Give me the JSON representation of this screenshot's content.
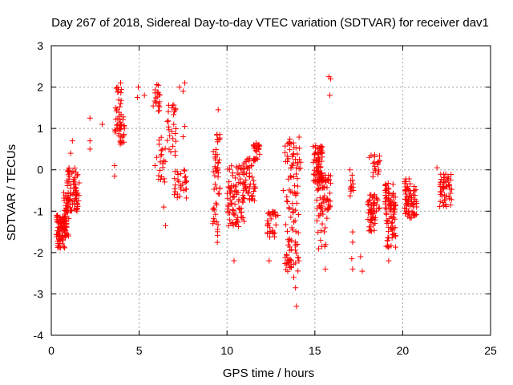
{
  "chart_data": {
    "type": "scatter",
    "title": "Day 267 of 2018, Sidereal Day-to-day VTEC variation (SDTVAR) for receiver dav1",
    "xlabel": "GPS time / hours",
    "ylabel": "SDTVAR / TECUs",
    "xlim": [
      0,
      25
    ],
    "ylim": [
      -4,
      3
    ],
    "xticks": [
      0,
      5,
      10,
      15,
      20,
      25
    ],
    "yticks": [
      -4,
      -3,
      -2,
      -1,
      0,
      1,
      2,
      3
    ],
    "xtick_labels": [
      "0",
      "5",
      "10",
      "15",
      "20",
      "25"
    ],
    "ytick_labels": [
      "-4",
      "-3",
      "-2",
      "-1",
      "0",
      "1",
      "2",
      "3"
    ],
    "grid": true,
    "marker": "+",
    "colors": {
      "points": "#ff0000",
      "grid": "#a0a0a0",
      "axis": "#000000"
    },
    "series": [
      {
        "name": "SDTVAR",
        "clusters": [
          {
            "x": [
              0.3,
              0.8
            ],
            "y": [
              -1.9,
              -1.1
            ],
            "n": 80
          },
          {
            "x": [
              0.7,
              1.0
            ],
            "y": [
              -1.6,
              -0.5
            ],
            "n": 45
          },
          {
            "x": [
              0.9,
              1.6
            ],
            "y": [
              -1.0,
              0.1
            ],
            "n": 70
          },
          {
            "x": [
              3.6,
              4.0
            ],
            "y": [
              0.9,
              2.3
            ],
            "n": 30
          },
          {
            "x": [
              3.8,
              4.2
            ],
            "y": [
              0.6,
              1.3
            ],
            "n": 25
          },
          {
            "x": [
              5.8,
              6.2
            ],
            "y": [
              1.4,
              2.2
            ],
            "n": 20
          },
          {
            "x": [
              6.1,
              6.5
            ],
            "y": [
              -0.3,
              0.8
            ],
            "n": 20
          },
          {
            "x": [
              6.6,
              7.1
            ],
            "y": [
              0.3,
              1.6
            ],
            "n": 25
          },
          {
            "x": [
              7.0,
              7.7
            ],
            "y": [
              -0.7,
              0.0
            ],
            "n": 30
          },
          {
            "x": [
              9.2,
              9.6
            ],
            "y": [
              -0.6,
              0.9
            ],
            "n": 35
          },
          {
            "x": [
              9.2,
              9.5
            ],
            "y": [
              -1.8,
              -0.8
            ],
            "n": 15
          },
          {
            "x": [
              10.0,
              11.0
            ],
            "y": [
              -1.4,
              0.1
            ],
            "n": 90
          },
          {
            "x": [
              10.9,
              11.6
            ],
            "y": [
              -0.8,
              0.3
            ],
            "n": 50
          },
          {
            "x": [
              11.5,
              11.9
            ],
            "y": [
              0.2,
              0.7
            ],
            "n": 25
          },
          {
            "x": [
              12.3,
              12.8
            ],
            "y": [
              -1.7,
              -1.0
            ],
            "n": 30
          },
          {
            "x": [
              13.3,
              14.1
            ],
            "y": [
              -2.5,
              -1.3
            ],
            "n": 45
          },
          {
            "x": [
              13.4,
              14.1
            ],
            "y": [
              -1.3,
              -0.1
            ],
            "n": 30
          },
          {
            "x": [
              13.3,
              14.2
            ],
            "y": [
              0.0,
              0.8
            ],
            "n": 35
          },
          {
            "x": [
              14.9,
              15.5
            ],
            "y": [
              -0.3,
              0.6
            ],
            "n": 70
          },
          {
            "x": [
              15.1,
              15.9
            ],
            "y": [
              -1.0,
              -0.1
            ],
            "n": 60
          },
          {
            "x": [
              15.1,
              15.7
            ],
            "y": [
              -2.0,
              -1.0
            ],
            "n": 15
          },
          {
            "x": [
              17.0,
              17.2
            ],
            "y": [
              -0.7,
              -0.1
            ],
            "n": 12
          },
          {
            "x": [
              18.0,
              18.5
            ],
            "y": [
              -1.5,
              -0.6
            ],
            "n": 50
          },
          {
            "x": [
              18.3,
              18.7
            ],
            "y": [
              -1.0,
              0.4
            ],
            "n": 25
          },
          {
            "x": [
              19.0,
              19.6
            ],
            "y": [
              -1.9,
              -0.6
            ],
            "n": 70
          },
          {
            "x": [
              19.0,
              19.5
            ],
            "y": [
              -0.7,
              -0.3
            ],
            "n": 20
          },
          {
            "x": [
              20.1,
              20.8
            ],
            "y": [
              -1.2,
              -0.2
            ],
            "n": 70
          },
          {
            "x": [
              22.1,
              22.8
            ],
            "y": [
              -0.9,
              -0.1
            ],
            "n": 50
          }
        ],
        "outliers": [
          [
            1.2,
            0.7
          ],
          [
            1.1,
            0.4
          ],
          [
            2.2,
            0.7
          ],
          [
            2.2,
            0.5
          ],
          [
            2.2,
            1.25
          ],
          [
            2.9,
            1.1
          ],
          [
            3.6,
            0.1
          ],
          [
            3.6,
            -0.15
          ],
          [
            4.9,
            1.75
          ],
          [
            4.95,
            2.0
          ],
          [
            5.3,
            1.8
          ],
          [
            5.9,
            0.1
          ],
          [
            6.0,
            0.3
          ],
          [
            6.4,
            -0.9
          ],
          [
            6.5,
            -1.35
          ],
          [
            7.5,
            0.8
          ],
          [
            7.6,
            1.05
          ],
          [
            7.6,
            2.1
          ],
          [
            7.5,
            1.9
          ],
          [
            7.3,
            2.0
          ],
          [
            7.0,
            1.4
          ],
          [
            9.2,
            -1.3
          ],
          [
            9.5,
            1.45
          ],
          [
            10.4,
            -2.2
          ],
          [
            12.4,
            -2.2
          ],
          [
            12.9,
            -1.1
          ],
          [
            13.2,
            -0.5
          ],
          [
            13.95,
            -3.3
          ],
          [
            13.9,
            -2.85
          ],
          [
            13.8,
            -2.6
          ],
          [
            15.8,
            2.25
          ],
          [
            15.9,
            2.2
          ],
          [
            15.85,
            1.8
          ],
          [
            15.6,
            -2.4
          ],
          [
            15.4,
            -1.85
          ],
          [
            17.0,
            0.0
          ],
          [
            17.15,
            -1.5
          ],
          [
            17.15,
            -1.75
          ],
          [
            17.1,
            -2.15
          ],
          [
            17.15,
            -2.4
          ],
          [
            17.6,
            -2.1
          ],
          [
            17.7,
            -2.45
          ],
          [
            18.2,
            0.35
          ],
          [
            18.1,
            0.3
          ],
          [
            19.2,
            -2.2
          ],
          [
            21.95,
            0.05
          ]
        ]
      }
    ]
  }
}
